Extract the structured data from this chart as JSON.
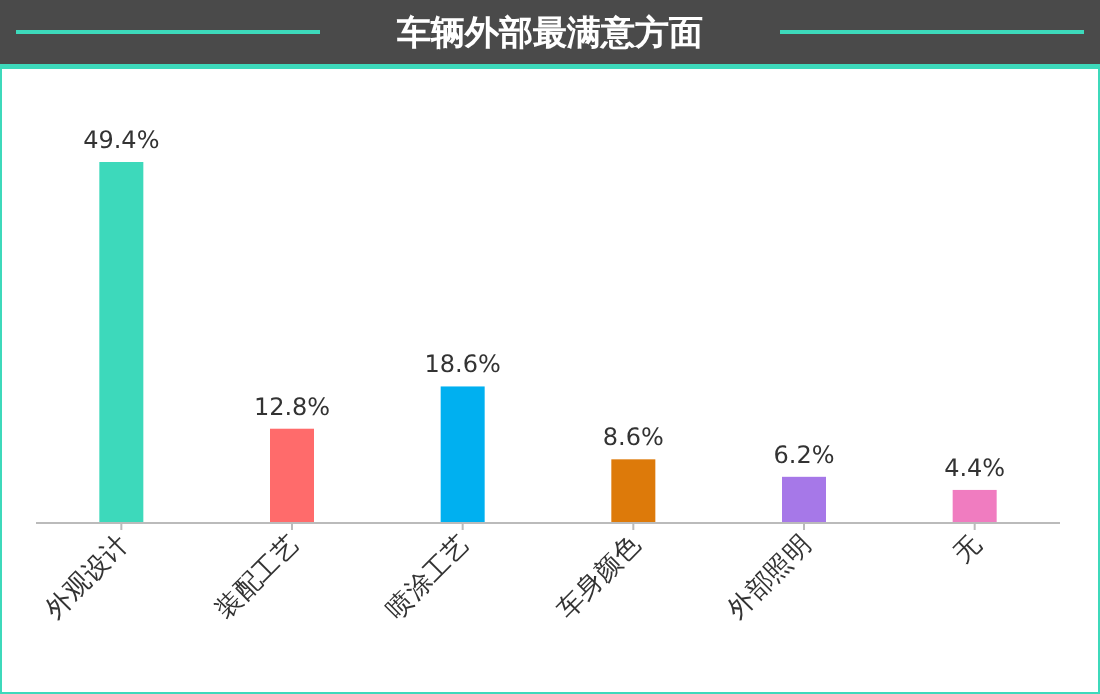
{
  "chart_data": {
    "type": "bar",
    "title": "车辆外部最满意方面",
    "categories": [
      "外观设计",
      "装配工艺",
      "喷涂工艺",
      "车身颜色",
      "外部照明",
      "无"
    ],
    "values": [
      49.4,
      12.8,
      18.6,
      8.6,
      6.2,
      4.4
    ],
    "colors": [
      "#3dd9bb",
      "#ff6b6b",
      "#00b0f0",
      "#dd7a0a",
      "#a678e8",
      "#f07cc0"
    ],
    "value_labels": [
      "49.4%",
      "12.8%",
      "18.6%",
      "8.6%",
      "6.2%",
      "4.4%"
    ]
  }
}
